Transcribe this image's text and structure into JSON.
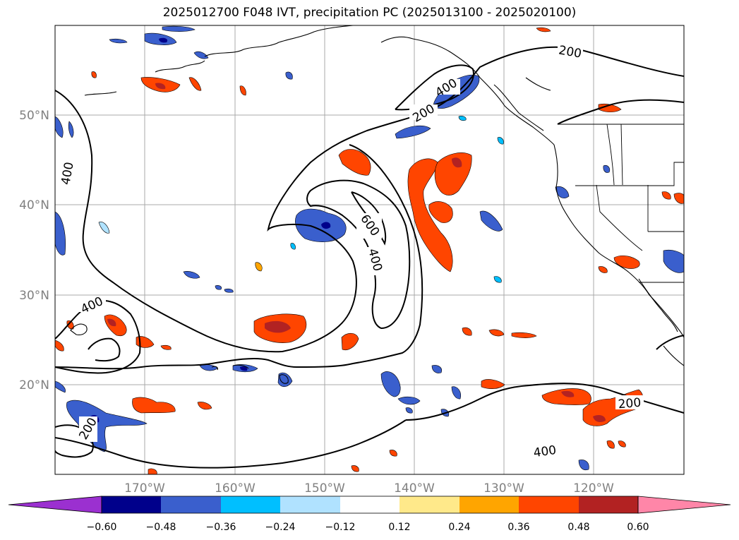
{
  "title": "2025012700 F048 IVT, precipitation PC (2025013100 - 2025020100)",
  "map": {
    "lat_labels": [
      "50°N",
      "40°N",
      "30°N",
      "20°N"
    ],
    "lon_labels": [
      "170°W",
      "160°W",
      "150°W",
      "140°W",
      "130°W",
      "120°W"
    ],
    "contour_labels": [
      "200",
      "400",
      "200",
      "400",
      "600",
      "400",
      "400",
      "200",
      "200",
      "400"
    ],
    "grid": true
  },
  "colorbar": {
    "labels": [
      "−0.60",
      "−0.48",
      "−0.36",
      "−0.24",
      "−0.12",
      "0.12",
      "0.24",
      "0.36",
      "0.48",
      "0.60"
    ],
    "colors": [
      "#9b30d0",
      "#00008b",
      "#3a5fcd",
      "#00bfff",
      "#b0e2ff",
      "#ffffff",
      "#ffe98a",
      "#ffa500",
      "#ff4500",
      "#b22222",
      "#ff86a8"
    ]
  }
}
